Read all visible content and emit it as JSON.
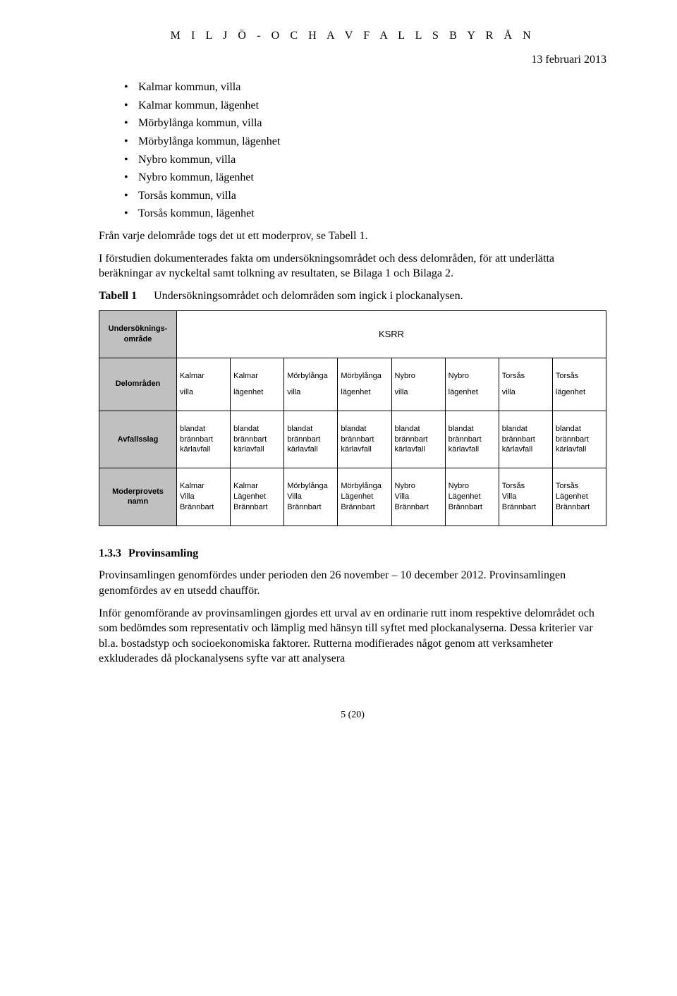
{
  "header": {
    "org": "M I L J Ö -  O C H  A V F A L L S B Y R Å N",
    "date": "13 februari 2013"
  },
  "bullets": [
    "Kalmar kommun, villa",
    "Kalmar kommun, lägenhet",
    "Mörbylånga kommun, villa",
    "Mörbylånga kommun, lägenhet",
    "Nybro kommun, villa",
    "Nybro kommun, lägenhet",
    "Torsås kommun, villa",
    "Torsås kommun, lägenhet"
  ],
  "para1": "Från varje delområde togs det ut ett moderprov, se Tabell 1.",
  "para2": "I förstudien dokumenterades fakta om undersökningsområdet och dess delområden, för att underlätta beräkningar av nyckeltal samt tolkning av resultaten, se Bilaga 1 och Bilaga 2.",
  "tabell": {
    "label": "Tabell 1",
    "caption": "Undersökningsområdet och delområden som ingick i plockanalysen."
  },
  "table": {
    "ksrr": "KSRR",
    "rowLabels": {
      "r1": "Undersöknings-område",
      "r2": "Delområden",
      "r3": "Avfallsslag",
      "r4": "Moderprovets namn"
    },
    "cols": [
      {
        "delomrade1": "Kalmar",
        "delomrade2": "villa",
        "avfall1": "blandat",
        "avfall2": "brännbart",
        "avfall3": "kärlavfall",
        "moder1": "Kalmar",
        "moder2": "Villa",
        "moder3": "Brännbart"
      },
      {
        "delomrade1": "Kalmar",
        "delomrade2": "lägenhet",
        "avfall1": "blandat",
        "avfall2": "brännbart",
        "avfall3": "kärlavfall",
        "moder1": "Kalmar",
        "moder2": "Lägenhet",
        "moder3": "Brännbart"
      },
      {
        "delomrade1": "Mörbylånga",
        "delomrade2": "villa",
        "avfall1": "blandat",
        "avfall2": "brännbart",
        "avfall3": "kärlavfall",
        "moder1": "Mörbylånga",
        "moder2": "Villa",
        "moder3": "Brännbart"
      },
      {
        "delomrade1": "Mörbylånga",
        "delomrade2": "lägenhet",
        "avfall1": "blandat",
        "avfall2": "brännbart",
        "avfall3": "kärlavfall",
        "moder1": "Mörbylånga",
        "moder2": "Lägenhet",
        "moder3": "Brännbart"
      },
      {
        "delomrade1": "Nybro",
        "delomrade2": "villa",
        "avfall1": "blandat",
        "avfall2": "brännbart",
        "avfall3": "kärlavfall",
        "moder1": "Nybro",
        "moder2": "Villa",
        "moder3": "Brännbart"
      },
      {
        "delomrade1": "Nybro",
        "delomrade2": "lägenhet",
        "avfall1": "blandat",
        "avfall2": "brännbart",
        "avfall3": "kärlavfall",
        "moder1": "Nybro",
        "moder2": "Lägenhet",
        "moder3": "Brännbart"
      },
      {
        "delomrade1": "Torsås",
        "delomrade2": "villa",
        "avfall1": "blandat",
        "avfall2": "brännbart",
        "avfall3": "kärlavfall",
        "moder1": "Torsås",
        "moder2": "Villa",
        "moder3": "Brännbart"
      },
      {
        "delomrade1": "Torsås",
        "delomrade2": "lägenhet",
        "avfall1": "blandat",
        "avfall2": "brännbart",
        "avfall3": "kärlavfall",
        "moder1": "Torsås",
        "moder2": "Lägenhet",
        "moder3": "Brännbart"
      }
    ]
  },
  "section": {
    "num": "1.3.3",
    "title": "Provinsamling",
    "p1": "Provinsamlingen genomfördes under perioden den 26 november – 10 december 2012. Provinsamlingen genomfördes av en utsedd chaufför.",
    "p2": "Inför genomförande av provinsamlingen gjordes ett urval av en ordinarie rutt inom respektive delområdet och som bedömdes som representativ och lämplig med hänsyn till syftet med plockanalyserna. Dessa kriterier var bl.a. bostadstyp och socioekonomiska faktorer. Rutterna modifierades något genom att verksamheter exkluderades då plockanalysens syfte var att analysera"
  },
  "footer": {
    "page": "5 (20)"
  }
}
